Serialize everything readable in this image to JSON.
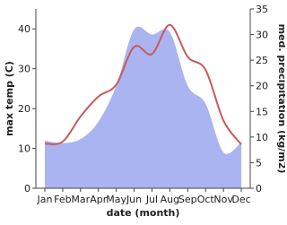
{
  "chart_data": {
    "type": "line-area",
    "x_label": "date (month)",
    "y_label": "max temp (C)",
    "y2_label": "med. precipitation (kg/m2)",
    "categories": [
      "Jan",
      "Feb",
      "Mar",
      "Apr",
      "May",
      "Jun",
      "Jul",
      "Aug",
      "Sep",
      "Oct",
      "Nov",
      "Dec"
    ],
    "ylim": [
      0,
      45
    ],
    "yticks": [
      0,
      10,
      20,
      30,
      40
    ],
    "y2lim": [
      0,
      35
    ],
    "y2ticks": [
      0,
      5,
      10,
      15,
      20,
      25,
      30,
      35
    ],
    "series": [
      {
        "name": "max temp (C)",
        "color": "#c75a5e",
        "kind": "line",
        "values": [
          11.2,
          11.7,
          18,
          23,
          26,
          35.5,
          33.7,
          41,
          33,
          29.7,
          17,
          11
        ]
      },
      {
        "name": "med. precipitation (kg/m2)",
        "color": "#aab4f0",
        "kind": "area",
        "axis": "y2",
        "values": [
          9.3,
          8.8,
          9.6,
          13,
          20,
          31,
          30,
          30.5,
          20,
          16.5,
          7,
          9
        ]
      }
    ]
  }
}
